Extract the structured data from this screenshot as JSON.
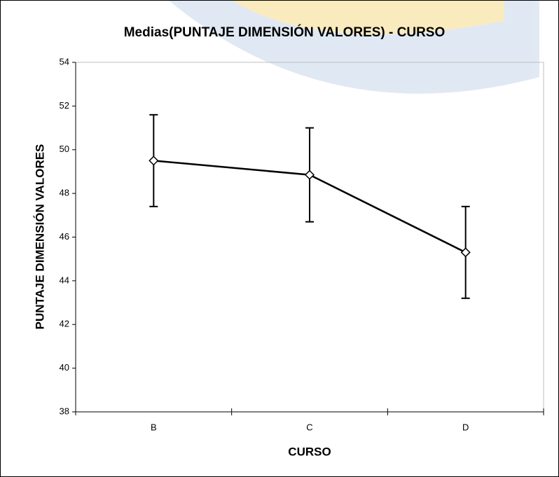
{
  "chart_data": {
    "type": "line",
    "title": "Medias(PUNTAJE DIMENSIÓN VALORES) - CURSO",
    "x_label": "CURSO",
    "y_label": "PUNTAJE DIMENSIÓN VALORES",
    "categories": [
      "B",
      "C",
      "D"
    ],
    "series": [
      {
        "values": [
          49.5,
          48.85,
          45.3
        ],
        "errors": [
          2.1,
          2.15,
          2.1
        ],
        "color": "#000000",
        "marker": "diamond"
      }
    ],
    "ylim": [
      38,
      54
    ],
    "yticks": [
      38,
      40,
      42,
      44,
      46,
      48,
      50,
      52,
      54
    ],
    "grid": false
  }
}
